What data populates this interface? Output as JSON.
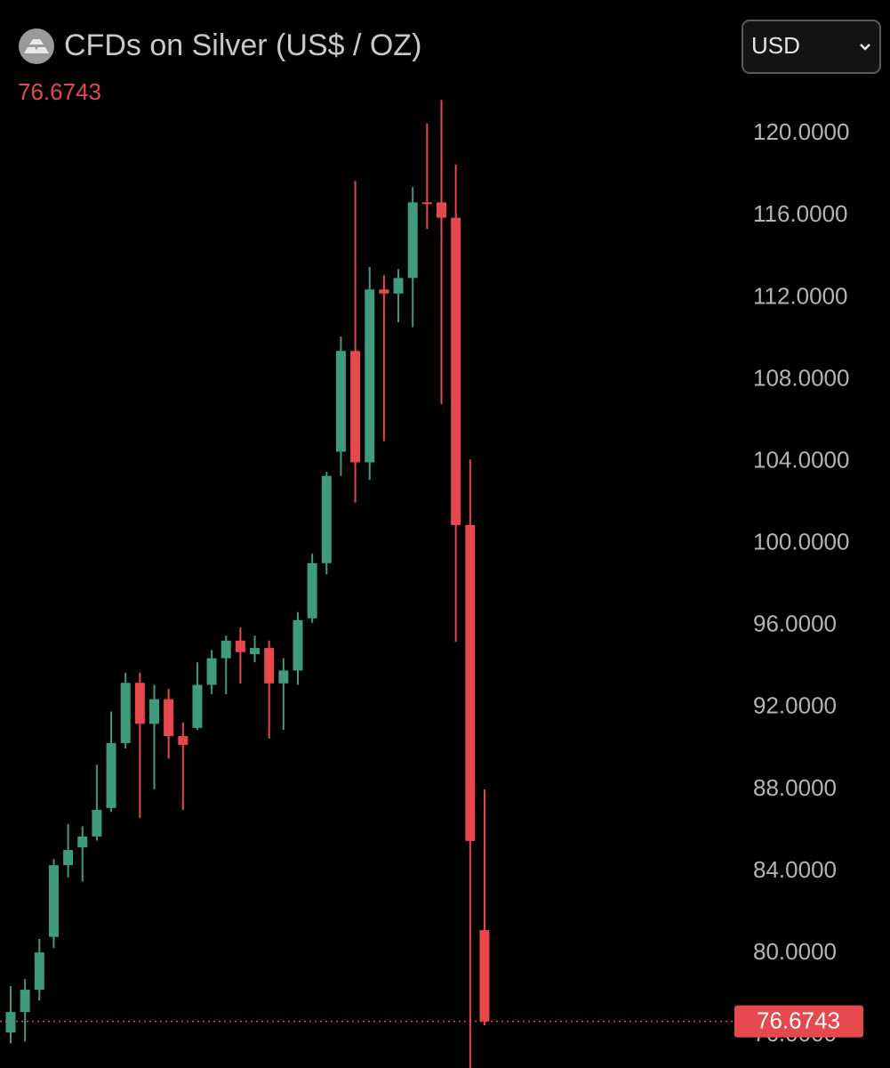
{
  "chart_data": {
    "type": "candlestick",
    "title": "CFDs on Silver (US$ / OZ)",
    "last_price": 76.6743,
    "currency": "USD",
    "up_color": "#3f9a7e",
    "down_color": "#e5484d",
    "ylim": [
      74.4,
      122.4
    ],
    "yticks": [
      {
        "value": 76,
        "label": "76.0000"
      },
      {
        "value": 80,
        "label": "80.0000"
      },
      {
        "value": 84,
        "label": "84.0000"
      },
      {
        "value": 88,
        "label": "88.0000"
      },
      {
        "value": 92,
        "label": "92.0000"
      },
      {
        "value": 96,
        "label": "96.0000"
      },
      {
        "value": 100,
        "label": "100.0000"
      },
      {
        "value": 104,
        "label": "104.0000"
      },
      {
        "value": 108,
        "label": "108.0000"
      },
      {
        "value": 112,
        "label": "112.0000"
      },
      {
        "value": 116,
        "label": "116.0000"
      },
      {
        "value": 120,
        "label": "120.0000"
      }
    ],
    "open": [
      76.13,
      77.13,
      78.22,
      80.8,
      84.3,
      85.17,
      85.7,
      87.09,
      90.26,
      93.2,
      91.2,
      92.4,
      90.6,
      91.0,
      93.1,
      94.4,
      95.26,
      94.6,
      94.9,
      93.17,
      93.8,
      96.35,
      99.04,
      104.48,
      109.4,
      103.96,
      112.4,
      112.2,
      112.96,
      116.65,
      116.65,
      115.9,
      100.9,
      81.13
    ],
    "high": [
      78.39,
      78.74,
      80.7,
      84.6,
      86.3,
      86.2,
      89.2,
      91.8,
      93.7,
      93.7,
      93.1,
      92.9,
      91.26,
      94.2,
      94.8,
      95.5,
      95.9,
      95.5,
      95.26,
      94.4,
      96.65,
      99.5,
      103.5,
      110.1,
      117.7,
      113.5,
      113.1,
      113.4,
      117.4,
      120.5,
      121.65,
      118.5,
      104.1,
      88.0
    ],
    "low": [
      75.6,
      75.7,
      77.7,
      80.26,
      83.7,
      83.5,
      85.5,
      86.9,
      90.0,
      86.6,
      88.0,
      89.5,
      87.0,
      90.9,
      92.65,
      92.65,
      93.17,
      94.2,
      90.48,
      90.9,
      93.1,
      96.13,
      98.5,
      103.3,
      102.0,
      103.1,
      105.0,
      110.8,
      110.56,
      115.35,
      106.8,
      95.2,
      74.0,
      76.48
    ],
    "close": [
      77.13,
      78.22,
      80.04,
      84.3,
      85.04,
      85.7,
      87.0,
      90.26,
      93.2,
      91.2,
      92.4,
      90.6,
      90.17,
      93.1,
      94.4,
      95.26,
      94.7,
      94.9,
      93.17,
      93.8,
      96.26,
      99.04,
      103.3,
      109.4,
      103.96,
      112.4,
      112.2,
      112.96,
      116.65,
      116.6,
      115.9,
      100.9,
      85.48,
      76.6743
    ]
  }
}
